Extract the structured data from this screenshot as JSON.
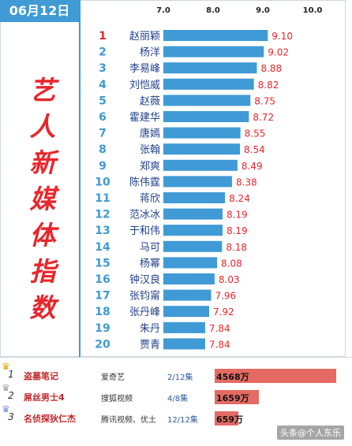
{
  "header": {
    "date": "06月12日"
  },
  "side_title": "艺人新媒体指数",
  "chart_data": {
    "type": "bar",
    "orientation": "horizontal",
    "x_ticks": [
      "7.0",
      "8.0",
      "9.0",
      "10.0"
    ],
    "xlim": [
      7.0,
      10.0
    ],
    "bar_color": "#3f9ad5",
    "rank_color": "#e8262b",
    "name_color": "#1f3f8a",
    "value_color": "#e8262b",
    "items": [
      {
        "rank": "1",
        "name": "赵丽颖",
        "value": 9.1,
        "label": "9.10"
      },
      {
        "rank": "2",
        "name": "杨洋",
        "value": 9.02,
        "label": "9.02"
      },
      {
        "rank": "3",
        "name": "李易峰",
        "value": 8.88,
        "label": "8.88"
      },
      {
        "rank": "4",
        "name": "刘恺威",
        "value": 8.82,
        "label": "8.82"
      },
      {
        "rank": "5",
        "name": "赵薇",
        "value": 8.75,
        "label": "8.75"
      },
      {
        "rank": "6",
        "name": "霍建华",
        "value": 8.72,
        "label": "8.72"
      },
      {
        "rank": "7",
        "name": "唐嫣",
        "value": 8.55,
        "label": "8.55"
      },
      {
        "rank": "8",
        "name": "张翰",
        "value": 8.54,
        "label": "8.54"
      },
      {
        "rank": "9",
        "name": "郑爽",
        "value": 8.49,
        "label": "8.49"
      },
      {
        "rank": "10",
        "name": "陈伟霆",
        "value": 8.38,
        "label": "8.38"
      },
      {
        "rank": "11",
        "name": "蒋欣",
        "value": 8.24,
        "label": "8.24"
      },
      {
        "rank": "12",
        "name": "范冰冰",
        "value": 8.19,
        "label": "8.19"
      },
      {
        "rank": "13",
        "name": "于和伟",
        "value": 8.19,
        "label": "8.19"
      },
      {
        "rank": "14",
        "name": "马可",
        "value": 8.18,
        "label": "8.18"
      },
      {
        "rank": "15",
        "name": "杨幂",
        "value": 8.08,
        "label": "8.08"
      },
      {
        "rank": "16",
        "name": "钟汉良",
        "value": 8.03,
        "label": "8.03"
      },
      {
        "rank": "17",
        "name": "张钧甯",
        "value": 7.96,
        "label": "7.96"
      },
      {
        "rank": "18",
        "name": "张丹峰",
        "value": 7.92,
        "label": "7.92"
      },
      {
        "rank": "19",
        "name": "朱丹",
        "value": 7.84,
        "label": "7.84"
      },
      {
        "rank": "20",
        "name": "贾青",
        "value": 7.84,
        "label": "7.84"
      }
    ]
  },
  "drama_list": [
    {
      "rank": "1",
      "title": "盗墓笔记",
      "platform": "爱奇艺",
      "episodes": "2/12集",
      "views": "4568万",
      "views_value": 4568
    },
    {
      "rank": "2",
      "title": "屌丝男士4",
      "platform": "搜狐视频",
      "episodes": "4/8集",
      "views": "1659万",
      "views_value": 1659
    },
    {
      "rank": "3",
      "title": "名侦探狄仁杰",
      "platform": "腾讯视频、优土",
      "episodes": "12/12集",
      "views": "659万",
      "views_value": 659
    }
  ],
  "watermark": "头条@个人东乐"
}
